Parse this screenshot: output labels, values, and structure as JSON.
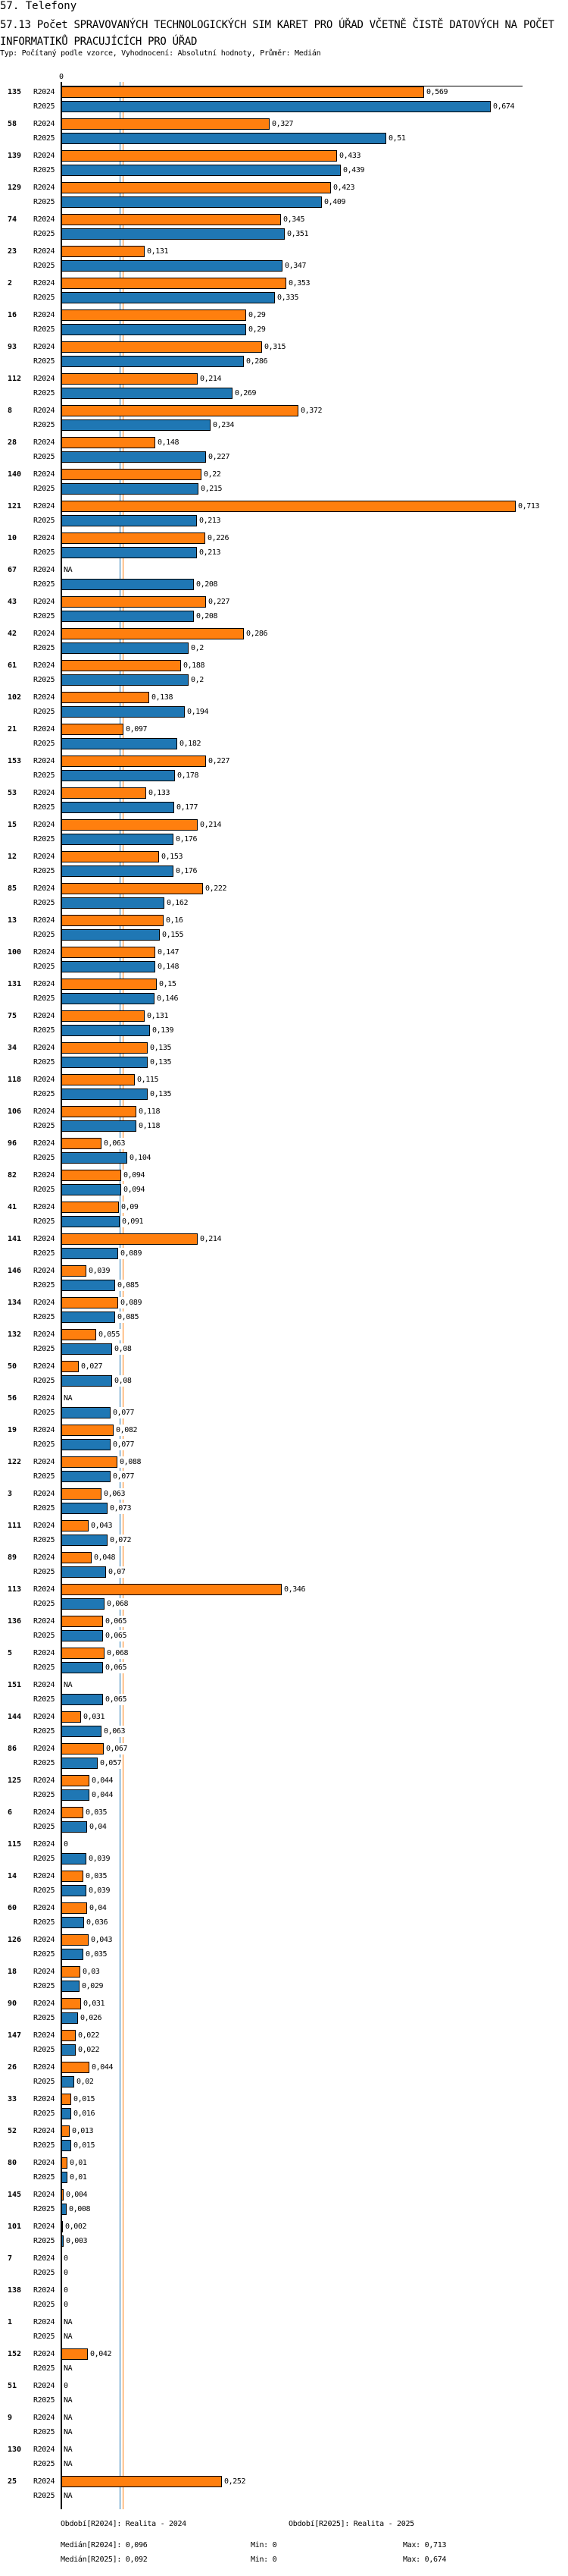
{
  "header": {
    "section": "57. Telefony",
    "title": "57.13 Počet SPRAVOVANÝCH TECHNOLOGICKÝCH SIM KARET PRO ÚŘAD VČETNĚ ČISTĚ DATOVÝCH NA POČET INFORMATIKŮ PRACUJÍCÍCH PRO ÚŘAD",
    "subtitle": "Typ: Počítaný podle vzorce, Vyhodnocení: Absolutní hodnoty, Průměr: Medián"
  },
  "colors": {
    "R2024": "#ff7f0e",
    "R2025": "#1f77b4"
  },
  "chart_data": {
    "type": "bar",
    "orientation": "horizontal",
    "axis_zero_label": "0",
    "xlim": [
      0,
      0.713
    ],
    "series_names": [
      "R2024",
      "R2025"
    ],
    "medians": {
      "R2024": 0.096,
      "R2025": 0.092
    },
    "groups": [
      {
        "id": "135",
        "R2024": 0.569,
        "R2025": 0.674
      },
      {
        "id": "58",
        "R2024": 0.327,
        "R2025": 0.51
      },
      {
        "id": "139",
        "R2024": 0.433,
        "R2025": 0.439
      },
      {
        "id": "129",
        "R2024": 0.423,
        "R2025": 0.409
      },
      {
        "id": "74",
        "R2024": 0.345,
        "R2025": 0.351
      },
      {
        "id": "23",
        "R2024": 0.131,
        "R2025": 0.347
      },
      {
        "id": "2",
        "R2024": 0.353,
        "R2025": 0.335
      },
      {
        "id": "16",
        "R2024": 0.29,
        "R2025": 0.29
      },
      {
        "id": "93",
        "R2024": 0.315,
        "R2025": 0.286
      },
      {
        "id": "112",
        "R2024": 0.214,
        "R2025": 0.269
      },
      {
        "id": "8",
        "R2024": 0.372,
        "R2025": 0.234
      },
      {
        "id": "28",
        "R2024": 0.148,
        "R2025": 0.227
      },
      {
        "id": "140",
        "R2024": 0.22,
        "R2025": 0.215
      },
      {
        "id": "121",
        "R2024": 0.713,
        "R2025": 0.213
      },
      {
        "id": "10",
        "R2024": 0.226,
        "R2025": 0.213
      },
      {
        "id": "67",
        "R2024": null,
        "R2025": 0.208
      },
      {
        "id": "43",
        "R2024": 0.227,
        "R2025": 0.208
      },
      {
        "id": "42",
        "R2024": 0.286,
        "R2025": 0.2
      },
      {
        "id": "61",
        "R2024": 0.188,
        "R2025": 0.2
      },
      {
        "id": "102",
        "R2024": 0.138,
        "R2025": 0.194
      },
      {
        "id": "21",
        "R2024": 0.097,
        "R2025": 0.182
      },
      {
        "id": "153",
        "R2024": 0.227,
        "R2025": 0.178
      },
      {
        "id": "53",
        "R2024": 0.133,
        "R2025": 0.177
      },
      {
        "id": "15",
        "R2024": 0.214,
        "R2025": 0.176
      },
      {
        "id": "12",
        "R2024": 0.153,
        "R2025": 0.176
      },
      {
        "id": "85",
        "R2024": 0.222,
        "R2025": 0.162
      },
      {
        "id": "13",
        "R2024": 0.16,
        "R2025": 0.155
      },
      {
        "id": "100",
        "R2024": 0.147,
        "R2025": 0.148
      },
      {
        "id": "131",
        "R2024": 0.15,
        "R2025": 0.146
      },
      {
        "id": "75",
        "R2024": 0.131,
        "R2025": 0.139
      },
      {
        "id": "34",
        "R2024": 0.135,
        "R2025": 0.135
      },
      {
        "id": "118",
        "R2024": 0.115,
        "R2025": 0.135
      },
      {
        "id": "106",
        "R2024": 0.118,
        "R2025": 0.118
      },
      {
        "id": "96",
        "R2024": 0.063,
        "R2025": 0.104
      },
      {
        "id": "82",
        "R2024": 0.094,
        "R2025": 0.094
      },
      {
        "id": "41",
        "R2024": 0.09,
        "R2025": 0.091
      },
      {
        "id": "141",
        "R2024": 0.214,
        "R2025": 0.089
      },
      {
        "id": "146",
        "R2024": 0.039,
        "R2025": 0.085
      },
      {
        "id": "134",
        "R2024": 0.089,
        "R2025": 0.085
      },
      {
        "id": "132",
        "R2024": 0.055,
        "R2025": 0.08
      },
      {
        "id": "50",
        "R2024": 0.027,
        "R2025": 0.08
      },
      {
        "id": "56",
        "R2024": null,
        "R2025": 0.077
      },
      {
        "id": "19",
        "R2024": 0.082,
        "R2025": 0.077
      },
      {
        "id": "122",
        "R2024": 0.088,
        "R2025": 0.077
      },
      {
        "id": "3",
        "R2024": 0.063,
        "R2025": 0.073
      },
      {
        "id": "111",
        "R2024": 0.043,
        "R2025": 0.072
      },
      {
        "id": "89",
        "R2024": 0.048,
        "R2025": 0.07
      },
      {
        "id": "113",
        "R2024": 0.346,
        "R2025": 0.068
      },
      {
        "id": "136",
        "R2024": 0.065,
        "R2025": 0.065
      },
      {
        "id": "5",
        "R2024": 0.068,
        "R2025": 0.065
      },
      {
        "id": "151",
        "R2024": null,
        "R2025": 0.065
      },
      {
        "id": "144",
        "R2024": 0.031,
        "R2025": 0.063
      },
      {
        "id": "86",
        "R2024": 0.067,
        "R2025": 0.057
      },
      {
        "id": "125",
        "R2024": 0.044,
        "R2025": 0.044
      },
      {
        "id": "6",
        "R2024": 0.035,
        "R2025": 0.04
      },
      {
        "id": "115",
        "R2024": 0,
        "R2025": 0.039
      },
      {
        "id": "14",
        "R2024": 0.035,
        "R2025": 0.039
      },
      {
        "id": "60",
        "R2024": 0.04,
        "R2025": 0.036
      },
      {
        "id": "126",
        "R2024": 0.043,
        "R2025": 0.035
      },
      {
        "id": "18",
        "R2024": 0.03,
        "R2025": 0.029
      },
      {
        "id": "90",
        "R2024": 0.031,
        "R2025": 0.026
      },
      {
        "id": "147",
        "R2024": 0.022,
        "R2025": 0.022
      },
      {
        "id": "26",
        "R2024": 0.044,
        "R2025": 0.02
      },
      {
        "id": "33",
        "R2024": 0.015,
        "R2025": 0.016
      },
      {
        "id": "52",
        "R2024": 0.013,
        "R2025": 0.015
      },
      {
        "id": "80",
        "R2024": 0.01,
        "R2025": 0.01
      },
      {
        "id": "145",
        "R2024": 0.004,
        "R2025": 0.008
      },
      {
        "id": "101",
        "R2024": 0.002,
        "R2025": 0.003
      },
      {
        "id": "7",
        "R2024": 0,
        "R2025": 0
      },
      {
        "id": "138",
        "R2024": 0,
        "R2025": 0
      },
      {
        "id": "1",
        "R2024": null,
        "R2025": null
      },
      {
        "id": "152",
        "R2024": 0.042,
        "R2025": null
      },
      {
        "id": "51",
        "R2024": 0,
        "R2025": null
      },
      {
        "id": "9",
        "R2024": null,
        "R2025": null
      },
      {
        "id": "130",
        "R2024": null,
        "R2025": null
      },
      {
        "id": "25",
        "R2024": 0.252,
        "R2025": null
      }
    ],
    "na_label": "NA"
  },
  "footer": {
    "period_2024": "Období[R2024]: Realita - 2024",
    "period_2025": "Období[R2025]: Realita - 2025",
    "median_2024": "Medián[R2024]: 0,096",
    "median_2025": "Medián[R2025]: 0,092",
    "min_2024": "Min: 0",
    "min_2025": "Min: 0",
    "max_2024": "Max: 0,713",
    "max_2025": "Max: 0,674"
  }
}
